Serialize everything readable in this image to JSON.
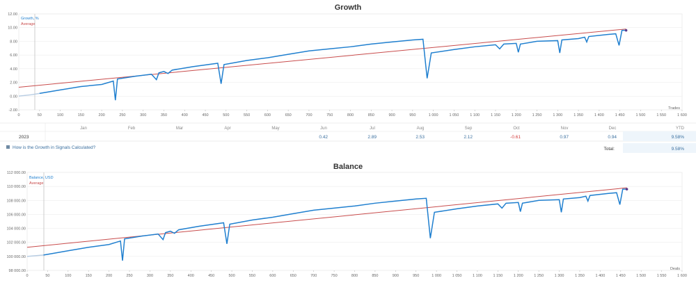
{
  "chart_data": [
    {
      "type": "line",
      "title": "Growth",
      "xlabel": "Trades",
      "ylabel": "",
      "xlim": [
        0,
        1600
      ],
      "ylim": [
        -2,
        12
      ],
      "x_ticks": [
        "0",
        "50",
        "100",
        "150",
        "200",
        "250",
        "300",
        "350",
        "400",
        "450",
        "500",
        "550",
        "600",
        "650",
        "700",
        "750",
        "800",
        "850",
        "900",
        "950",
        "1 000",
        "1 050",
        "1 100",
        "1 150",
        "1 200",
        "1 250",
        "1 300",
        "1 350",
        "1 400",
        "1 450",
        "1 500",
        "1 550",
        "1 600"
      ],
      "y_ticks": [
        "-2.00",
        "0.00",
        "2.00",
        "4.00",
        "6.00",
        "8.00",
        "10.00",
        "12.00"
      ],
      "series": [
        {
          "name": "Growth, %",
          "color": "#1f7fcf",
          "points": [
            [
              0,
              0.0
            ],
            [
              30,
              0.2
            ],
            [
              50,
              0.4
            ],
            [
              100,
              0.9
            ],
            [
              150,
              1.4
            ],
            [
              200,
              1.7
            ],
            [
              228,
              2.2
            ],
            [
              233,
              -0.6
            ],
            [
              238,
              2.5
            ],
            [
              280,
              2.9
            ],
            [
              320,
              3.2
            ],
            [
              332,
              2.4
            ],
            [
              338,
              3.4
            ],
            [
              350,
              3.6
            ],
            [
              360,
              3.3
            ],
            [
              370,
              3.8
            ],
            [
              420,
              4.3
            ],
            [
              480,
              4.8
            ],
            [
              488,
              1.8
            ],
            [
              495,
              4.6
            ],
            [
              550,
              5.2
            ],
            [
              600,
              5.6
            ],
            [
              650,
              6.1
            ],
            [
              700,
              6.6
            ],
            [
              750,
              6.9
            ],
            [
              800,
              7.2
            ],
            [
              850,
              7.6
            ],
            [
              900,
              7.9
            ],
            [
              950,
              8.2
            ],
            [
              975,
              8.3
            ],
            [
              985,
              2.6
            ],
            [
              995,
              6.3
            ],
            [
              1050,
              6.8
            ],
            [
              1100,
              7.2
            ],
            [
              1150,
              7.5
            ],
            [
              1160,
              6.9
            ],
            [
              1170,
              7.6
            ],
            [
              1200,
              7.7
            ],
            [
              1205,
              6.4
            ],
            [
              1210,
              7.6
            ],
            [
              1250,
              8.0
            ],
            [
              1300,
              8.1
            ],
            [
              1305,
              6.3
            ],
            [
              1310,
              8.2
            ],
            [
              1350,
              8.4
            ],
            [
              1365,
              8.6
            ],
            [
              1370,
              7.9
            ],
            [
              1375,
              8.7
            ],
            [
              1420,
              9.0
            ],
            [
              1440,
              9.1
            ],
            [
              1448,
              7.4
            ],
            [
              1455,
              9.6
            ],
            [
              1465,
              9.6
            ]
          ]
        },
        {
          "name": "Average",
          "color": "#c84b4b",
          "points": [
            [
              0,
              1.3
            ],
            [
              1465,
              9.8
            ]
          ]
        }
      ]
    },
    {
      "type": "line",
      "title": "Balance",
      "xlabel": "Deals",
      "ylabel": "",
      "xlim": [
        0,
        1600
      ],
      "ylim": [
        98000,
        112000
      ],
      "x_ticks": [
        "0",
        "50",
        "100",
        "150",
        "200",
        "250",
        "300",
        "350",
        "400",
        "450",
        "500",
        "550",
        "600",
        "650",
        "700",
        "750",
        "800",
        "850",
        "900",
        "950",
        "1 000",
        "1 050",
        "1 100",
        "1 150",
        "1 200",
        "1 250",
        "1 300",
        "1 350",
        "1 400",
        "1 450",
        "1 500",
        "1 550",
        "1 600"
      ],
      "y_ticks": [
        "98 000.00",
        "100 000.00",
        "102 000.00",
        "104 000.00",
        "106 000.00",
        "108 000.00",
        "110 000.00",
        "112 000.00"
      ],
      "series": [
        {
          "name": "Balance, USD",
          "color": "#1f7fcf",
          "points": [
            [
              0,
              100000
            ],
            [
              40,
              100200
            ],
            [
              60,
              100400
            ],
            [
              100,
              100800
            ],
            [
              150,
              101300
            ],
            [
              200,
              101700
            ],
            [
              228,
              102200
            ],
            [
              233,
              99400
            ],
            [
              238,
              102500
            ],
            [
              280,
              102900
            ],
            [
              320,
              103200
            ],
            [
              332,
              102400
            ],
            [
              338,
              103400
            ],
            [
              350,
              103600
            ],
            [
              360,
              103300
            ],
            [
              370,
              103800
            ],
            [
              420,
              104300
            ],
            [
              480,
              104800
            ],
            [
              488,
              101800
            ],
            [
              495,
              104600
            ],
            [
              550,
              105200
            ],
            [
              600,
              105600
            ],
            [
              650,
              106100
            ],
            [
              700,
              106600
            ],
            [
              750,
              106900
            ],
            [
              800,
              107200
            ],
            [
              850,
              107600
            ],
            [
              900,
              107900
            ],
            [
              950,
              108200
            ],
            [
              975,
              108300
            ],
            [
              985,
              102600
            ],
            [
              995,
              106300
            ],
            [
              1050,
              106800
            ],
            [
              1100,
              107200
            ],
            [
              1150,
              107500
            ],
            [
              1160,
              106900
            ],
            [
              1170,
              107600
            ],
            [
              1200,
              107700
            ],
            [
              1205,
              106400
            ],
            [
              1210,
              107600
            ],
            [
              1250,
              108000
            ],
            [
              1300,
              108100
            ],
            [
              1305,
              106300
            ],
            [
              1310,
              108200
            ],
            [
              1350,
              108400
            ],
            [
              1365,
              108600
            ],
            [
              1370,
              107900
            ],
            [
              1375,
              108700
            ],
            [
              1420,
              109000
            ],
            [
              1440,
              109100
            ],
            [
              1448,
              107400
            ],
            [
              1455,
              109600
            ],
            [
              1465,
              109600
            ]
          ]
        },
        {
          "name": "Average",
          "color": "#c84b4b",
          "points": [
            [
              0,
              101300
            ],
            [
              1465,
              109800
            ]
          ]
        }
      ]
    }
  ],
  "growth_table": {
    "year": "2023",
    "months": [
      "Jan",
      "Feb",
      "Mar",
      "Apr",
      "May",
      "Jun",
      "Jul",
      "Aug",
      "Sep",
      "Oct",
      "Nov",
      "Dec"
    ],
    "ytd_label": "YTD",
    "values": [
      "",
      "",
      "",
      "",
      "",
      "0.42",
      "2.89",
      "2.53",
      "2.12",
      "-0.61",
      "0.97",
      "0.94"
    ],
    "ytd_value": "9.58%",
    "total_label": "Total:",
    "total_value": "9.58%",
    "help_link": "How is the Growth in Signals Calculated?"
  }
}
